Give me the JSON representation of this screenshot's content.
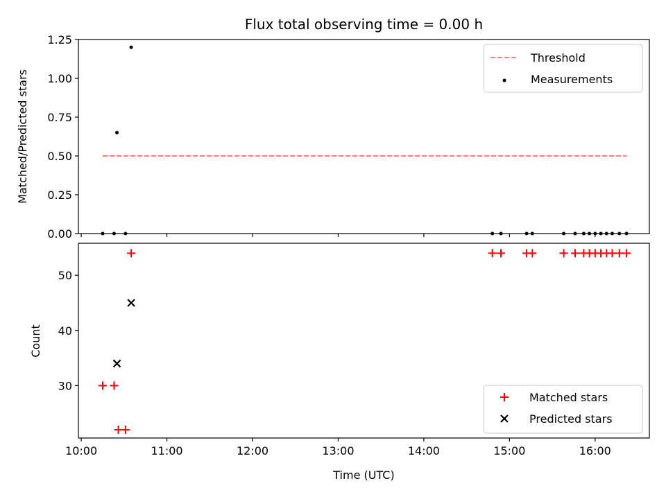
{
  "chart_data": [
    {
      "type": "scatter",
      "title": "Flux total observing time = 0.00 h",
      "xlabel": "",
      "ylabel": "Matched/Predicted stars",
      "xlim": [
        "09:58",
        "16:38"
      ],
      "ylim": [
        0,
        1.25
      ],
      "yticks": [
        "0.00",
        "0.25",
        "0.50",
        "0.75",
        "1.00",
        "1.25"
      ],
      "xticks": [
        "10:00",
        "11:00",
        "12:00",
        "13:00",
        "14:00",
        "15:00",
        "16:00"
      ],
      "show_xtick_labels": false,
      "grid": false,
      "legend_position": "upper right",
      "series": [
        {
          "name": "Threshold",
          "kind": "line",
          "style": "dashed",
          "color": "#ff7f7f",
          "x": [
            "10:15",
            "16:22"
          ],
          "y": [
            0.5,
            0.5
          ]
        },
        {
          "name": "Measurements",
          "kind": "dot",
          "color": "#000000",
          "x": [
            "10:15",
            "10:23",
            "10:25",
            "10:31",
            "10:35",
            "14:48",
            "14:54",
            "15:12",
            "15:16",
            "15:38",
            "15:46",
            "15:52",
            "15:56",
            "16:00",
            "16:04",
            "16:08",
            "16:12",
            "16:17",
            "16:22"
          ],
          "y": [
            0,
            0,
            0.65,
            0,
            1.2,
            0,
            0,
            0,
            0,
            0,
            0,
            0,
            0,
            0,
            0,
            0,
            0,
            0,
            0
          ]
        }
      ]
    },
    {
      "type": "scatter",
      "title": "",
      "xlabel": "Time (UTC)",
      "ylabel": "Count",
      "xlim": [
        "09:58",
        "16:38"
      ],
      "ylim": [
        20.5,
        55.8
      ],
      "yticks": [
        "30",
        "40",
        "50"
      ],
      "xticks": [
        "10:00",
        "11:00",
        "12:00",
        "13:00",
        "14:00",
        "15:00",
        "16:00"
      ],
      "grid": false,
      "legend_position": "lower right",
      "series": [
        {
          "name": "Matched stars",
          "marker": "plus",
          "color": "#ff0000",
          "x": [
            "10:15",
            "10:23",
            "10:26",
            "10:31",
            "10:35",
            "14:48",
            "14:54",
            "15:12",
            "15:16",
            "15:38",
            "15:46",
            "15:52",
            "15:56",
            "16:00",
            "16:04",
            "16:08",
            "16:12",
            "16:17",
            "16:22"
          ],
          "y": [
            30,
            30,
            22,
            22,
            54,
            54,
            54,
            54,
            54,
            54,
            54,
            54,
            54,
            54,
            54,
            54,
            54,
            54,
            54
          ]
        },
        {
          "name": "Predicted stars",
          "marker": "x",
          "color": "#000000",
          "x": [
            "10:25",
            "10:35"
          ],
          "y": [
            34,
            45
          ]
        }
      ]
    }
  ]
}
